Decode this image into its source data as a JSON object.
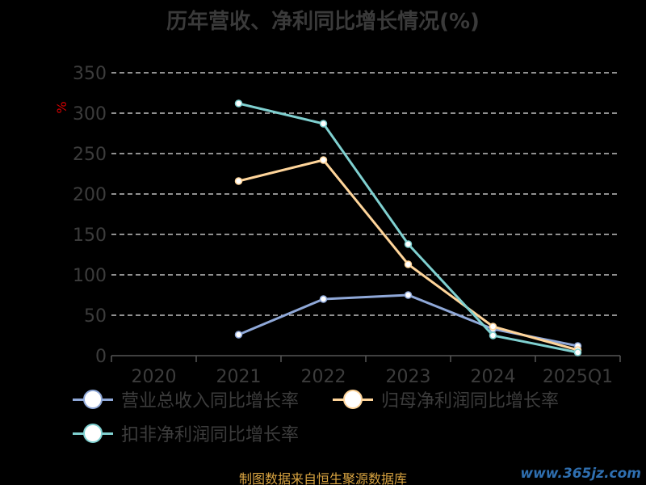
{
  "title": "历年营收、净利同比增长情况(%)",
  "footer": "制图数据来自恒生聚源数据库",
  "watermark": "www.365jz.com",
  "chart_data": {
    "type": "line",
    "title": "历年营收、净利同比增长情况(%)",
    "ylabel": "%",
    "xlabel": "",
    "ylim": [
      0,
      350
    ],
    "yticks": [
      "0",
      "50",
      "100",
      "150",
      "200",
      "250",
      "300",
      "350"
    ],
    "categories": [
      "2020",
      "2021",
      "2022",
      "2023",
      "2024",
      "2025Q1"
    ],
    "grid": true,
    "legend_position": "bottom",
    "series": [
      {
        "name": "营业总收入同比增长率",
        "color": "#8fa8d8",
        "values": [
          null,
          26,
          70,
          75,
          33,
          12
        ]
      },
      {
        "name": "归母净利润同比增长率",
        "color": "#ffd59a",
        "values": [
          null,
          216,
          242,
          113,
          36,
          7
        ]
      },
      {
        "name": "扣非净利润同比增长率",
        "color": "#7fd0d0",
        "values": [
          null,
          312,
          287,
          138,
          25,
          4
        ]
      }
    ]
  }
}
